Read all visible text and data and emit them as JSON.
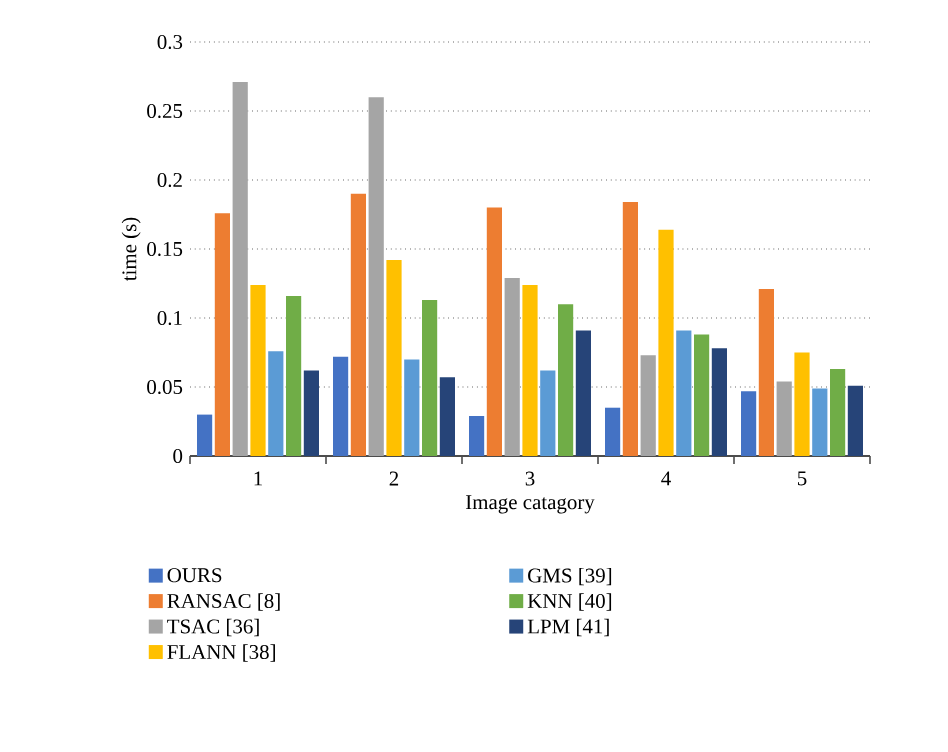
{
  "chart_data": {
    "type": "bar",
    "xlabel": "Image catagory",
    "ylabel": "time (s)",
    "categories": [
      "1",
      "2",
      "3",
      "4",
      "5"
    ],
    "series": [
      {
        "name": "OURS",
        "color": "#4472c4",
        "values": [
          0.03,
          0.072,
          0.029,
          0.035,
          0.047
        ]
      },
      {
        "name": "RANSAC [8]",
        "color": "#ed7d31",
        "values": [
          0.176,
          0.19,
          0.18,
          0.184,
          0.121
        ]
      },
      {
        "name": "TSAC [36]",
        "color": "#a5a5a5",
        "values": [
          0.271,
          0.26,
          0.129,
          0.073,
          0.054
        ]
      },
      {
        "name": "FLANN [38]",
        "color": "#ffc000",
        "values": [
          0.124,
          0.142,
          0.124,
          0.164,
          0.075
        ]
      },
      {
        "name": "GMS [39]",
        "color": "#5b9bd5",
        "values": [
          0.076,
          0.07,
          0.062,
          0.091,
          0.049
        ]
      },
      {
        "name": "KNN [40]",
        "color": "#70ad47",
        "values": [
          0.116,
          0.113,
          0.11,
          0.088,
          0.063
        ]
      },
      {
        "name": "LPM [41]",
        "color": "#264478",
        "values": [
          0.062,
          0.057,
          0.091,
          0.078,
          0.051
        ]
      }
    ],
    "ylim": [
      0,
      0.3
    ],
    "yticks": [
      0,
      0.05,
      0.1,
      0.15,
      0.2,
      0.25,
      0.3
    ],
    "grid": "y",
    "legend": "bottom"
  }
}
